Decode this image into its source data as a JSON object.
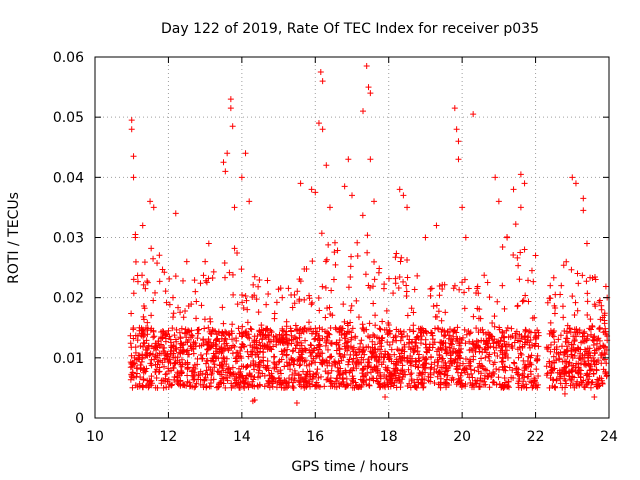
{
  "chart_data": {
    "type": "scatter",
    "title": "Day 122 of 2019, Rate Of TEC Index for receiver p035",
    "xlabel": "GPS time / hours",
    "ylabel": "ROTI / TECUs",
    "xlim": [
      10,
      24
    ],
    "ylim": [
      0,
      0.06
    ],
    "x_ticks": [
      10,
      12,
      14,
      16,
      18,
      20,
      22,
      24
    ],
    "y_ticks": [
      0,
      0.01,
      0.02,
      0.03,
      0.04,
      0.05,
      0.06
    ],
    "x_tick_labels": [
      "10",
      "12",
      "14",
      "16",
      "18",
      "20",
      "22",
      "24"
    ],
    "y_tick_labels": [
      "0",
      "0.01",
      "0.02",
      "0.03",
      "0.04",
      "0.05",
      "0.06"
    ],
    "grid": true,
    "marker": "+",
    "marker_color": "#ff0000",
    "series": [
      {
        "name": "ROTI",
        "points": [
          [
            11.0,
            0.0495
          ],
          [
            11.0,
            0.048
          ],
          [
            11.05,
            0.0435
          ],
          [
            11.05,
            0.04
          ],
          [
            11.1,
            0.0305
          ],
          [
            11.1,
            0.03
          ],
          [
            11.3,
            0.032
          ],
          [
            11.5,
            0.036
          ],
          [
            11.6,
            0.035
          ],
          [
            12.2,
            0.034
          ],
          [
            12.5,
            0.026
          ],
          [
            13.0,
            0.026
          ],
          [
            13.1,
            0.029
          ],
          [
            13.5,
            0.0425
          ],
          [
            13.55,
            0.041
          ],
          [
            13.6,
            0.044
          ],
          [
            13.7,
            0.053
          ],
          [
            13.7,
            0.0515
          ],
          [
            13.75,
            0.0485
          ],
          [
            13.8,
            0.035
          ],
          [
            14.0,
            0.04
          ],
          [
            14.1,
            0.044
          ],
          [
            14.2,
            0.036
          ],
          [
            14.3,
            0.0028
          ],
          [
            14.35,
            0.003
          ],
          [
            15.1,
            0.02
          ],
          [
            15.5,
            0.0025
          ],
          [
            15.6,
            0.039
          ],
          [
            15.9,
            0.038
          ],
          [
            16.0,
            0.0375
          ],
          [
            16.1,
            0.049
          ],
          [
            16.15,
            0.0575
          ],
          [
            16.2,
            0.056
          ],
          [
            16.2,
            0.048
          ],
          [
            16.3,
            0.042
          ],
          [
            16.4,
            0.035
          ],
          [
            16.8,
            0.0385
          ],
          [
            16.9,
            0.043
          ],
          [
            17.0,
            0.037
          ],
          [
            17.3,
            0.051
          ],
          [
            17.4,
            0.0585
          ],
          [
            17.45,
            0.055
          ],
          [
            17.5,
            0.054
          ],
          [
            17.5,
            0.043
          ],
          [
            17.6,
            0.036
          ],
          [
            17.9,
            0.0035
          ],
          [
            18.3,
            0.038
          ],
          [
            18.4,
            0.037
          ],
          [
            18.5,
            0.035
          ],
          [
            19.0,
            0.03
          ],
          [
            19.3,
            0.032
          ],
          [
            19.8,
            0.0515
          ],
          [
            19.85,
            0.048
          ],
          [
            19.9,
            0.046
          ],
          [
            19.9,
            0.043
          ],
          [
            20.0,
            0.035
          ],
          [
            20.1,
            0.03
          ],
          [
            20.3,
            0.0505
          ],
          [
            20.9,
            0.04
          ],
          [
            21.0,
            0.036
          ],
          [
            21.4,
            0.038
          ],
          [
            21.6,
            0.0405
          ],
          [
            21.7,
            0.039
          ],
          [
            21.6,
            0.035
          ],
          [
            22.0,
            0.027
          ],
          [
            22.4,
            0.022
          ],
          [
            22.7,
            0.022
          ],
          [
            22.8,
            0.004
          ],
          [
            23.0,
            0.04
          ],
          [
            23.1,
            0.039
          ],
          [
            23.3,
            0.0365
          ],
          [
            23.3,
            0.0345
          ],
          [
            23.4,
            0.029
          ],
          [
            23.6,
            0.0035
          ],
          [
            23.8,
            0.018
          ],
          [
            23.95,
            0.02
          ]
        ]
      }
    ]
  }
}
